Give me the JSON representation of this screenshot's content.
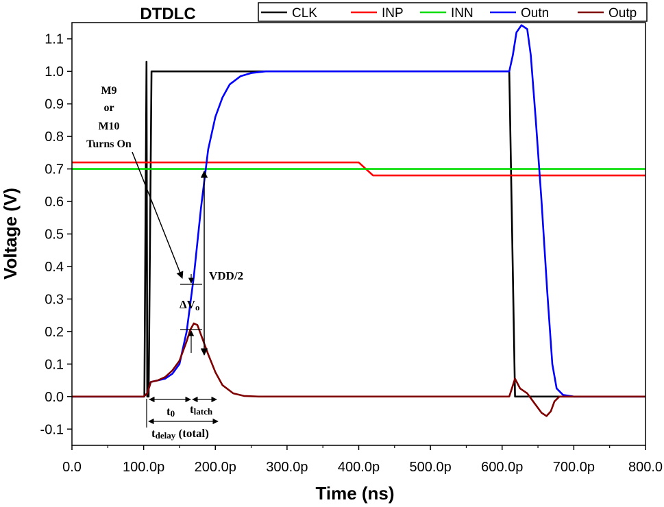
{
  "chart_data": {
    "type": "line",
    "title": "DTDLC",
    "xlabel": "Time (ns)",
    "ylabel": "Voltage (V)",
    "xlim": [
      0,
      800
    ],
    "ylim": [
      -0.15,
      1.15
    ],
    "x_ticks": [
      {
        "v": 0,
        "label": "0.0"
      },
      {
        "v": 100,
        "label": "100.0p"
      },
      {
        "v": 200,
        "label": "200.0p"
      },
      {
        "v": 300,
        "label": "300.0p"
      },
      {
        "v": 400,
        "label": "400.0p"
      },
      {
        "v": 500,
        "label": "500.0p"
      },
      {
        "v": 600,
        "label": "600.0p"
      },
      {
        "v": 700,
        "label": "700.0p"
      },
      {
        "v": 800,
        "label": "800.0"
      }
    ],
    "y_ticks": [
      {
        "v": -0.1,
        "label": "-0.1"
      },
      {
        "v": 0.0,
        "label": "0.0"
      },
      {
        "v": 0.1,
        "label": "0.1"
      },
      {
        "v": 0.2,
        "label": "0.2"
      },
      {
        "v": 0.3,
        "label": "0.3"
      },
      {
        "v": 0.4,
        "label": "0.4"
      },
      {
        "v": 0.5,
        "label": "0.5"
      },
      {
        "v": 0.6,
        "label": "0.6"
      },
      {
        "v": 0.7,
        "label": "0.7"
      },
      {
        "v": 0.8,
        "label": "0.8"
      },
      {
        "v": 0.9,
        "label": "0.9"
      },
      {
        "v": 1.0,
        "label": "1.0"
      },
      {
        "v": 1.1,
        "label": "1.1"
      }
    ],
    "legend": "top-right",
    "series": [
      {
        "name": "CLK",
        "color": "#000000",
        "points": [
          [
            0,
            0
          ],
          [
            101,
            0
          ],
          [
            104,
            1.03
          ],
          [
            105,
            0
          ],
          [
            107,
            0
          ],
          [
            111,
            1.0
          ],
          [
            610,
            1.0
          ],
          [
            614,
            0.5
          ],
          [
            618,
            0
          ],
          [
            800,
            0
          ]
        ]
      },
      {
        "name": "INP",
        "color": "#ff0000",
        "points": [
          [
            0,
            0.72
          ],
          [
            400,
            0.72
          ],
          [
            420,
            0.68
          ],
          [
            800,
            0.68
          ]
        ]
      },
      {
        "name": "INN",
        "color": "#00dd00",
        "points": [
          [
            0,
            0.7
          ],
          [
            800,
            0.7
          ]
        ]
      },
      {
        "name": "Outn",
        "color": "#0000ff",
        "points": [
          [
            0,
            0
          ],
          [
            100,
            0
          ],
          [
            105,
            0.01
          ],
          [
            110,
            0.045
          ],
          [
            120,
            0.05
          ],
          [
            130,
            0.055
          ],
          [
            140,
            0.07
          ],
          [
            150,
            0.1
          ],
          [
            160,
            0.2
          ],
          [
            170,
            0.37
          ],
          [
            180,
            0.58
          ],
          [
            190,
            0.76
          ],
          [
            200,
            0.86
          ],
          [
            210,
            0.92
          ],
          [
            220,
            0.96
          ],
          [
            235,
            0.985
          ],
          [
            250,
            0.995
          ],
          [
            270,
            1.0
          ],
          [
            610,
            1.0
          ],
          [
            615,
            1.05
          ],
          [
            620,
            1.12
          ],
          [
            627,
            1.142
          ],
          [
            635,
            1.13
          ],
          [
            640,
            1.05
          ],
          [
            647,
            0.85
          ],
          [
            655,
            0.6
          ],
          [
            663,
            0.32
          ],
          [
            670,
            0.1
          ],
          [
            676,
            0.025
          ],
          [
            685,
            0.005
          ],
          [
            700,
            0
          ],
          [
            800,
            0
          ]
        ]
      },
      {
        "name": "Outp",
        "color": "#800000",
        "points": [
          [
            0,
            0
          ],
          [
            100,
            0
          ],
          [
            105,
            0.01
          ],
          [
            110,
            0.045
          ],
          [
            120,
            0.05
          ],
          [
            130,
            0.06
          ],
          [
            140,
            0.08
          ],
          [
            150,
            0.11
          ],
          [
            160,
            0.17
          ],
          [
            165,
            0.205
          ],
          [
            170,
            0.225
          ],
          [
            175,
            0.22
          ],
          [
            180,
            0.19
          ],
          [
            190,
            0.13
          ],
          [
            200,
            0.075
          ],
          [
            210,
            0.035
          ],
          [
            225,
            0.01
          ],
          [
            240,
            0.002
          ],
          [
            260,
            0
          ],
          [
            610,
            0
          ],
          [
            618,
            0.055
          ],
          [
            625,
            0.025
          ],
          [
            635,
            0.01
          ],
          [
            645,
            -0.02
          ],
          [
            655,
            -0.05
          ],
          [
            662,
            -0.06
          ],
          [
            668,
            -0.045
          ],
          [
            673,
            -0.015
          ],
          [
            680,
            0
          ],
          [
            800,
            0
          ]
        ]
      }
    ],
    "annotations": {
      "m9": "M9",
      "or": "or",
      "m10": "M10",
      "turns_on": "Turns On",
      "vdd_main": "VDD",
      "vdd_rest": "/2",
      "dvo_main": "ΔV",
      "dvo_sub": "o",
      "t0_main": "t",
      "t0_sub": "0",
      "tlatch_main": "t",
      "tlatch_sub": "latch",
      "tdelay_main": "t",
      "tdelay_sub": "delay",
      "tdelay_rest": " (total)"
    }
  }
}
